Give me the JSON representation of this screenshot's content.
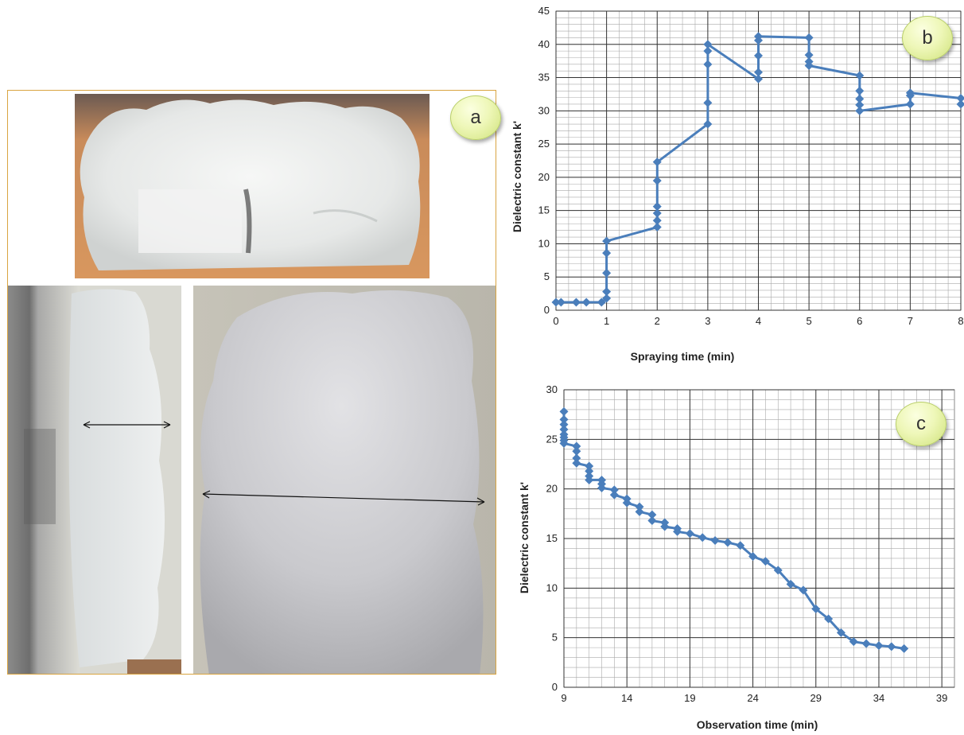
{
  "panels": {
    "a": {
      "label": "a"
    },
    "b": {
      "label": "b"
    },
    "c": {
      "label": "c"
    }
  },
  "chart_data": [
    {
      "type": "line",
      "panel": "b",
      "xlabel": "Spraying time (min)",
      "ylabel": "Dielectric constant k'",
      "xlim": [
        0,
        8
      ],
      "ylim": [
        0,
        45
      ],
      "xticks": [
        0,
        1,
        2,
        3,
        4,
        5,
        6,
        7,
        8
      ],
      "yticks": [
        0,
        5,
        10,
        15,
        20,
        25,
        30,
        35,
        40,
        45
      ],
      "grid": true,
      "marker": "diamond",
      "color": "#4a7ebb",
      "x": [
        0,
        0.1,
        0.4,
        0.6,
        0.9,
        1,
        1,
        1,
        1,
        1,
        2,
        2,
        2,
        2,
        2,
        2,
        3,
        3,
        3,
        3,
        3,
        4,
        4,
        4,
        4,
        4,
        5,
        5,
        5,
        5,
        6,
        6,
        6,
        6,
        6,
        7,
        7,
        7,
        8,
        8
      ],
      "y": [
        1.2,
        1.2,
        1.2,
        1.2,
        1.2,
        1.8,
        2.8,
        5.6,
        8.6,
        10.4,
        12.5,
        13.5,
        14.6,
        15.6,
        19.5,
        22.3,
        28,
        31.2,
        37,
        39,
        40,
        34.8,
        35.8,
        38.3,
        40.6,
        41.2,
        41,
        38.4,
        37.4,
        36.8,
        35.3,
        33,
        31.8,
        30.9,
        30,
        31,
        32.3,
        32.7,
        31.9,
        31
      ]
    },
    {
      "type": "line",
      "panel": "c",
      "xlabel": "Observation time (min)",
      "ylabel": "Dielectric constant k'",
      "xlim": [
        9,
        40
      ],
      "ylim": [
        0,
        30
      ],
      "xticks": [
        9,
        14,
        19,
        24,
        29,
        34,
        39
      ],
      "yticks": [
        0,
        5,
        10,
        15,
        20,
        25,
        30
      ],
      "grid": true,
      "marker": "diamond",
      "color": "#4a7ebb",
      "x": [
        9,
        9,
        9,
        9,
        9,
        9,
        9,
        9,
        10,
        10,
        10,
        10,
        11,
        11,
        11,
        11,
        12,
        12,
        12,
        13,
        13,
        14,
        14,
        15,
        15,
        16,
        16,
        17,
        17,
        18,
        18,
        19,
        20,
        21,
        22,
        23,
        24,
        25,
        26,
        27,
        28,
        29,
        30,
        31,
        32,
        33,
        34,
        35,
        36
      ],
      "y": [
        27.8,
        27,
        26.5,
        26,
        25.5,
        25.2,
        24.9,
        24.6,
        24.3,
        23.8,
        23.1,
        22.6,
        22.3,
        21.8,
        21.3,
        20.9,
        20.9,
        20.5,
        20.1,
        19.9,
        19.4,
        19,
        18.6,
        18.2,
        17.7,
        17.4,
        16.8,
        16.6,
        16.2,
        16,
        15.7,
        15.5,
        15.1,
        14.8,
        14.6,
        14.3,
        13.2,
        12.7,
        11.8,
        10.4,
        9.8,
        7.9,
        6.9,
        5.5,
        4.6,
        4.4,
        4.2,
        4.1,
        3.9
      ]
    }
  ]
}
